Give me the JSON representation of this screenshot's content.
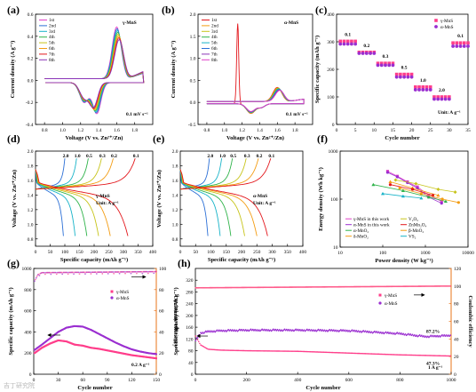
{
  "colors": {
    "red": "#e3161b",
    "orange": "#f39c12",
    "yellow": "#c7c41a",
    "green": "#2fb34a",
    "cyan": "#17b3c8",
    "blue": "#2b6fd6",
    "purple": "#8b35b8",
    "magenta": "#e040c8",
    "pink": "#ff3d8a",
    "violet": "#9a2ed0",
    "orange_axis": "#e8741a",
    "coulomb": "#ff5a8a"
  },
  "watermark": "吉丁研究院",
  "chart_data": [
    {
      "panel": "(a)",
      "type": "line",
      "annotation": "γ-MnS",
      "rate": "0.1 mV s⁻¹",
      "xlabel": "Voltage (V vs. Zn²⁺/Zn)",
      "ylabel": "Current density (A g⁻¹)",
      "xlim": [
        0.7,
        2.0
      ],
      "ylim": [
        -0.4,
        0.6
      ],
      "xticks": [
        "0.8",
        "1.0",
        "1.2",
        "1.4",
        "1.6",
        "1.8"
      ],
      "yticks": [
        "-0.4",
        "-0.2",
        "0.0",
        "0.2",
        "0.4",
        "0.6"
      ],
      "legend": [
        "1st",
        "2nd",
        "3rd",
        "4th",
        "5th",
        "6th",
        "7th",
        "8th"
      ],
      "features": {
        "anodic_peak_V": 1.6,
        "anodic_peak_I": 0.47,
        "cathodic_peaks_V": [
          1.24,
          1.38
        ],
        "cathodic_peaks_I": [
          -0.18,
          -0.28
        ]
      }
    },
    {
      "panel": "(b)",
      "type": "line",
      "annotation": "α-MnS",
      "rate": "0.1 mV s⁻¹",
      "xlabel": "Voltage (V vs. Zn²⁺/Zn)",
      "ylabel": "Current density (A g⁻¹)",
      "xlim": [
        0.7,
        2.0
      ],
      "ylim": [
        -0.5,
        2.0
      ],
      "xticks": [
        "0.8",
        "1.0",
        "1.2",
        "1.4",
        "1.6",
        "1.8"
      ],
      "yticks": [
        "-0.5",
        "0.0",
        "0.5",
        "1.0",
        "1.5",
        "2.0"
      ],
      "legend": [
        "1st",
        "2nd",
        "3rd",
        "4th",
        "5th",
        "6th",
        "7th",
        "8th"
      ],
      "features": {
        "first_cycle_spike_V": 1.15,
        "first_cycle_spike_I": 1.72,
        "anodic_peak_V": 1.6,
        "anodic_peak_I": 0.32,
        "cathodic_peak_V": 1.3,
        "cathodic_peak_I": -0.22
      }
    },
    {
      "panel": "(c)",
      "type": "scatter",
      "xlabel": "Cycle number",
      "ylabel": "Specific capacity (mAh g⁻¹)",
      "xlim": [
        0,
        35
      ],
      "ylim": [
        0,
        400
      ],
      "xticks": [
        "0",
        "5",
        "10",
        "15",
        "20",
        "25",
        "30",
        "35"
      ],
      "yticks": [
        "0",
        "100",
        "200",
        "300",
        "400"
      ],
      "legend": [
        "γ-MnS",
        "α-MnS"
      ],
      "unit_note": "Unit: A g⁻¹",
      "rate_labels": [
        "0.1",
        "0.2",
        "0.3",
        "0.5",
        "1.0",
        "2.0",
        "0.1"
      ],
      "segments": [
        {
          "rate": "0.1",
          "cycles": [
            1,
            5
          ],
          "gamma": 302,
          "alpha": 292
        },
        {
          "rate": "0.2",
          "cycles": [
            6,
            10
          ],
          "gamma": 262,
          "alpha": 258
        },
        {
          "rate": "0.3",
          "cycles": [
            11,
            15
          ],
          "gamma": 222,
          "alpha": 215
        },
        {
          "rate": "0.5",
          "cycles": [
            16,
            20
          ],
          "gamma": 182,
          "alpha": 172
        },
        {
          "rate": "1.0",
          "cycles": [
            21,
            25
          ],
          "gamma": 136,
          "alpha": 126
        },
        {
          "rate": "2.0",
          "cycles": [
            26,
            30
          ],
          "gamma": 100,
          "alpha": 92
        },
        {
          "rate": "0.1",
          "cycles": [
            31,
            35
          ],
          "gamma": 296,
          "alpha": 284
        }
      ]
    },
    {
      "panel": "(d)",
      "type": "line",
      "annotation": "γ-MnS",
      "unit_note": "Unit: A g⁻¹",
      "xlabel": "Specific capacity (mAh g⁻¹)",
      "ylabel": "Voltage (V vs. Zn²⁺/Zn)",
      "xlim": [
        0,
        400
      ],
      "ylim": [
        0.7,
        2.0
      ],
      "xticks": [
        "0",
        "50",
        "100",
        "150",
        "200",
        "250",
        "300",
        "350",
        "400"
      ],
      "yticks": [
        "0.8",
        "1.0",
        "1.2",
        "1.4",
        "1.6",
        "1.8",
        "2.0"
      ],
      "rates": [
        "2.0",
        "1.0",
        "0.5",
        "0.3",
        "0.2",
        "0.1"
      ],
      "charge_end_capacity": [
        100,
        140,
        180,
        225,
        265,
        340
      ],
      "discharge_end_capacity": [
        95,
        135,
        175,
        215,
        255,
        315
      ]
    },
    {
      "panel": "(e)",
      "type": "line",
      "annotation": "α-MnS",
      "unit_note": "Unit: A g⁻¹",
      "xlabel": "Specific capacity (mAh g⁻¹)",
      "ylabel": "Voltage (V vs. Zn²⁺/Zn)",
      "xlim": [
        0,
        400
      ],
      "ylim": [
        0.7,
        2.0
      ],
      "xticks": [
        "0",
        "50",
        "100",
        "150",
        "200",
        "250",
        "300",
        "350",
        "400"
      ],
      "yticks": [
        "0.8",
        "1.0",
        "1.2",
        "1.4",
        "1.6",
        "1.8",
        "2.0"
      ],
      "rates": [
        "2.0",
        "1.0",
        "0.5",
        "0.3",
        "0.2",
        "0.1"
      ],
      "charge_end_capacity": [
        95,
        135,
        170,
        215,
        255,
        295
      ],
      "discharge_end_capacity": [
        90,
        130,
        165,
        210,
        250,
        285
      ]
    },
    {
      "panel": "(f)",
      "type": "line",
      "scale": "log-log",
      "xlabel": "Power density (W kg⁻¹)",
      "ylabel": "Energy density (Wh kg⁻¹)",
      "xlim": [
        10,
        10000
      ],
      "ylim": [
        10,
        1000
      ],
      "xticks": [
        "10",
        "100",
        "1000",
        "10000"
      ],
      "yticks": [
        "10",
        "100",
        "1000"
      ],
      "series": [
        {
          "name": "γ-MnS in this work",
          "points": [
            [
              130,
              380
            ],
            [
              220,
              300
            ],
            [
              380,
              230
            ],
            [
              650,
              180
            ],
            [
              1200,
              120
            ],
            [
              2400,
              90
            ]
          ]
        },
        {
          "name": "α-MnS in this work",
          "points": [
            [
              130,
              360
            ],
            [
              220,
              290
            ],
            [
              380,
              220
            ],
            [
              650,
              170
            ],
            [
              1200,
              110
            ],
            [
              2400,
              82
            ]
          ]
        },
        {
          "name": "α-MnO₂",
          "points": [
            [
              60,
              200
            ],
            [
              300,
              150
            ],
            [
              1200,
              110
            ],
            [
              3000,
              90
            ]
          ]
        },
        {
          "name": "δ-MnO₂",
          "points": [
            [
              150,
              230
            ],
            [
              500,
              170
            ],
            [
              2000,
              120
            ]
          ]
        },
        {
          "name": "V₂O₅",
          "points": [
            [
              200,
              250
            ],
            [
              600,
              210
            ],
            [
              2000,
              160
            ],
            [
              5000,
              140
            ]
          ]
        },
        {
          "name": "ZnMn₂O₄",
          "points": [
            [
              150,
              200
            ],
            [
              500,
              160
            ],
            [
              1500,
              120
            ]
          ]
        },
        {
          "name": "β-MnO₂",
          "points": [
            [
              250,
              170
            ],
            [
              800,
              130
            ],
            [
              2500,
              100
            ],
            [
              6000,
              85
            ]
          ]
        },
        {
          "name": "VS₂",
          "points": [
            [
              100,
              130
            ],
            [
              300,
              115
            ],
            [
              800,
              105
            ]
          ]
        }
      ]
    },
    {
      "panel": "(g)",
      "type": "scatter",
      "xlabel": "Cycle number",
      "ylabel": "Specific capacity (mAh g⁻¹)",
      "y2label": "Coulombic efficiency",
      "xlim": [
        0,
        150
      ],
      "ylim": [
        0,
        1000
      ],
      "y2lim": [
        0,
        100
      ],
      "xticks": [
        "0",
        "30",
        "60",
        "90",
        "120",
        "150"
      ],
      "yticks": [
        "0",
        "200",
        "400",
        "600",
        "800",
        "1000"
      ],
      "y2ticks": [
        "0",
        "20",
        "40",
        "60",
        "80",
        "100"
      ],
      "legend": [
        "γ-MnS",
        "α-MnS"
      ],
      "rate_note": "0.2 A g⁻¹",
      "gamma_capacity": [
        [
          1,
          200
        ],
        [
          10,
          250
        ],
        [
          20,
          290
        ],
        [
          30,
          320
        ],
        [
          40,
          310
        ],
        [
          50,
          280
        ],
        [
          60,
          270
        ],
        [
          70,
          250
        ],
        [
          80,
          240
        ],
        [
          90,
          225
        ],
        [
          100,
          210
        ],
        [
          110,
          195
        ],
        [
          120,
          180
        ],
        [
          130,
          170
        ],
        [
          140,
          160
        ],
        [
          150,
          150
        ]
      ],
      "alpha_capacity": [
        [
          1,
          230
        ],
        [
          10,
          280
        ],
        [
          20,
          340
        ],
        [
          30,
          400
        ],
        [
          40,
          440
        ],
        [
          50,
          455
        ],
        [
          60,
          450
        ],
        [
          70,
          420
        ],
        [
          80,
          380
        ],
        [
          90,
          340
        ],
        [
          100,
          300
        ],
        [
          110,
          265
        ],
        [
          120,
          235
        ],
        [
          130,
          215
        ],
        [
          140,
          200
        ],
        [
          150,
          190
        ]
      ],
      "coulombic_efficiency": [
        [
          1,
          88
        ],
        [
          5,
          94
        ],
        [
          10,
          96
        ],
        [
          150,
          97
        ]
      ]
    },
    {
      "panel": "(h)",
      "type": "scatter",
      "xlabel": "Cycle number",
      "ylabel": "Specific capacity (mAh g⁻¹)",
      "y2label": "Coulombic efficiency",
      "xlim": [
        0,
        1000
      ],
      "ylim": [
        0,
        360
      ],
      "y2lim": [
        0,
        120
      ],
      "xticks": [
        "0",
        "200",
        "400",
        "600",
        "800",
        "1000"
      ],
      "yticks": [
        "0",
        "40",
        "80",
        "120",
        "160",
        "200",
        "240",
        "280",
        "320"
      ],
      "y2ticks": [
        "0",
        "20",
        "40",
        "60",
        "80",
        "100",
        "120"
      ],
      "legend": [
        "γ-MnS",
        "α-MnS"
      ],
      "rate_note": "1 A g⁻¹",
      "retention_alpha": "87.2%",
      "retention_gamma": "47.3%",
      "gamma_capacity": [
        [
          1,
          130
        ],
        [
          20,
          100
        ],
        [
          50,
          85
        ],
        [
          100,
          82
        ],
        [
          200,
          80
        ],
        [
          400,
          78
        ],
        [
          600,
          72
        ],
        [
          800,
          66
        ],
        [
          1000,
          62
        ]
      ],
      "alpha_capacity": [
        [
          1,
          115
        ],
        [
          20,
          140
        ],
        [
          50,
          145
        ],
        [
          100,
          148
        ],
        [
          200,
          150
        ],
        [
          400,
          150
        ],
        [
          600,
          148
        ],
        [
          800,
          138
        ],
        [
          900,
          128
        ],
        [
          1000,
          132
        ]
      ],
      "coulombic_efficiency": [
        [
          1,
          98
        ],
        [
          1000,
          100
        ]
      ]
    }
  ]
}
